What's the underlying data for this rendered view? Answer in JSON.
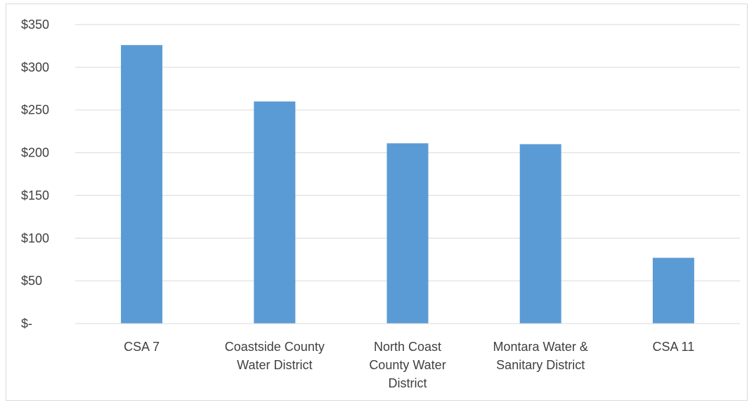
{
  "chart_data": {
    "type": "bar",
    "title": "",
    "xlabel": "",
    "ylabel": "",
    "categories": [
      [
        "CSA 7"
      ],
      [
        "Coastside County",
        "Water District"
      ],
      [
        "North Coast",
        "County Water",
        "District"
      ],
      [
        "Montara Water &",
        "Sanitary District"
      ],
      [
        "CSA 11"
      ]
    ],
    "values": [
      326,
      260,
      211,
      210,
      77
    ],
    "ylim": [
      0,
      350
    ],
    "yticks": [
      0,
      50,
      100,
      150,
      200,
      250,
      300,
      350
    ],
    "ytick_labels": [
      "$-",
      "$50",
      "$100",
      "$150",
      "$200",
      "$250",
      "$300",
      "$350"
    ],
    "bar_color": "#5b9bd5",
    "grid": true,
    "gridline_color": "#d9d9d9",
    "legend": "none"
  }
}
